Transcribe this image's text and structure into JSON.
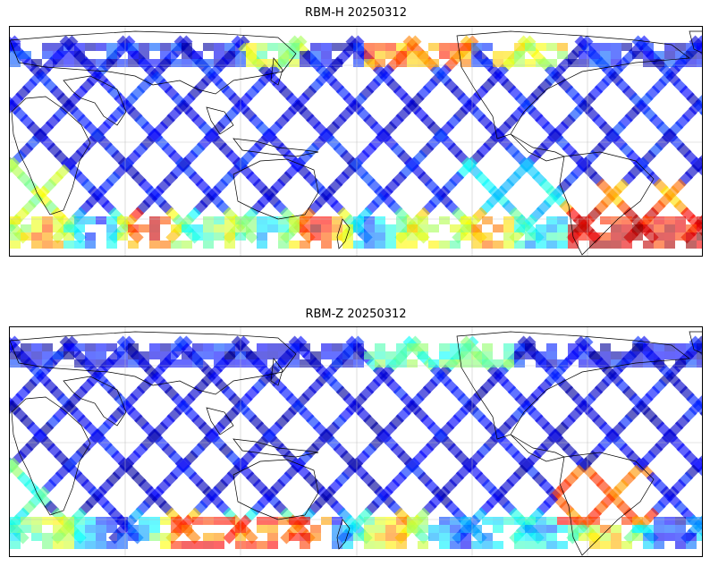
{
  "figure": {
    "panels": [
      {
        "title": "RBM-H 20250312",
        "variable": "RBM-H",
        "date": "20250312"
      },
      {
        "title": "RBM-Z 20250312",
        "variable": "RBM-Z",
        "date": "20250312"
      }
    ]
  },
  "map": {
    "projection": "PlateCarree",
    "central_longitude": 0,
    "coastlines": true,
    "gridlines": true,
    "colormap": "jet",
    "swath_alpha": 0.6,
    "colors": {
      "low": "#3333ee",
      "mid": "#33ddff",
      "high": "#ee2222",
      "land_line": "#000000",
      "grid": "#bbbbbb"
    }
  }
}
